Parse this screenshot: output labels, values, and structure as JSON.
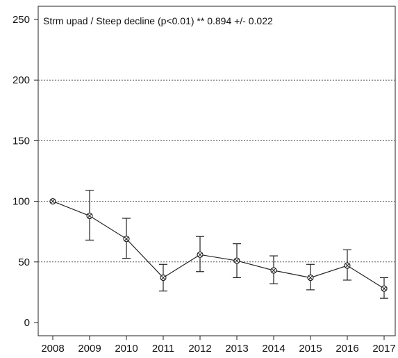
{
  "chart_data": {
    "type": "line",
    "title": "",
    "annotation": "Strm upad / Steep decline (p<0.01) **  0.894 +/- 0.022",
    "xlabel": "",
    "ylabel": "",
    "categories": [
      "2008",
      "2009",
      "2010",
      "2011",
      "2012",
      "2013",
      "2014",
      "2015",
      "2016",
      "2017"
    ],
    "series": [
      {
        "values": [
          100,
          88,
          69,
          37,
          56,
          51,
          43,
          37,
          47,
          28
        ],
        "error_lower": [
          100,
          68,
          53,
          26,
          42,
          37,
          32,
          27,
          35,
          20
        ],
        "error_upper": [
          100,
          109,
          86,
          48,
          71,
          65,
          55,
          48,
          60,
          37
        ]
      }
    ],
    "ylim": [
      0,
      250
    ],
    "yticks": [
      "0",
      "50",
      "100",
      "150",
      "200",
      "250"
    ],
    "grid": "horizontal dotted at 50, 100, 150, 200",
    "marker": "circle-with-cross",
    "color": "#222222"
  }
}
